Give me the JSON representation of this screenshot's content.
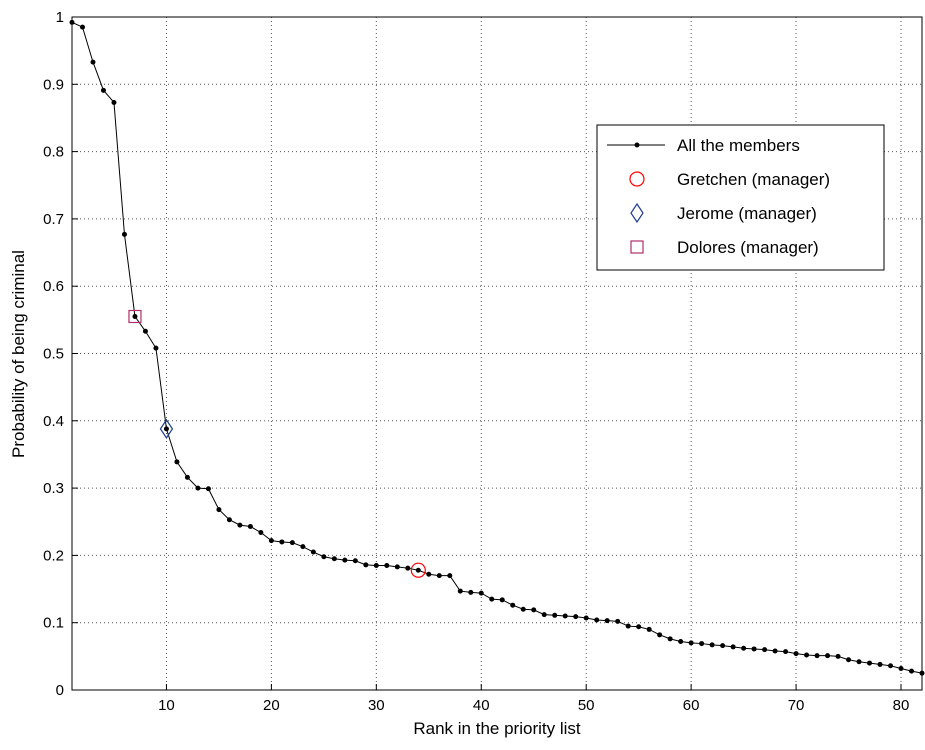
{
  "chart_data": {
    "type": "line",
    "xlabel": "Rank in the priority list",
    "ylabel": "Probability of being criminal",
    "xlim": [
      1,
      82
    ],
    "ylim": [
      0,
      1
    ],
    "xticks": [
      10,
      20,
      30,
      40,
      50,
      60,
      70,
      80
    ],
    "yticks": [
      0,
      0.1,
      0.2,
      0.3,
      0.4,
      0.5,
      0.6,
      0.7,
      0.8,
      0.9,
      1
    ],
    "grid": true,
    "legend": "east",
    "series": [
      {
        "name": "All the members",
        "color": "#000000",
        "marker": "dot",
        "x": [
          1,
          2,
          3,
          4,
          5,
          6,
          7,
          8,
          9,
          10,
          11,
          12,
          13,
          14,
          15,
          16,
          17,
          18,
          19,
          20,
          21,
          22,
          23,
          24,
          25,
          26,
          27,
          28,
          29,
          30,
          31,
          32,
          33,
          34,
          35,
          36,
          37,
          38,
          39,
          40,
          41,
          42,
          43,
          44,
          45,
          46,
          47,
          48,
          49,
          50,
          51,
          52,
          53,
          54,
          55,
          56,
          57,
          58,
          59,
          60,
          61,
          62,
          63,
          64,
          65,
          66,
          67,
          68,
          69,
          70,
          71,
          72,
          73,
          74,
          75,
          76,
          77,
          78,
          79,
          80,
          81,
          82
        ],
        "values": [
          0.992,
          0.985,
          0.933,
          0.891,
          0.873,
          0.677,
          0.555,
          0.533,
          0.508,
          0.388,
          0.339,
          0.316,
          0.3,
          0.299,
          0.268,
          0.253,
          0.245,
          0.243,
          0.234,
          0.222,
          0.22,
          0.219,
          0.213,
          0.205,
          0.198,
          0.195,
          0.193,
          0.192,
          0.186,
          0.185,
          0.185,
          0.183,
          0.181,
          0.178,
          0.172,
          0.17,
          0.17,
          0.147,
          0.145,
          0.144,
          0.135,
          0.134,
          0.126,
          0.12,
          0.119,
          0.112,
          0.111,
          0.11,
          0.109,
          0.107,
          0.104,
          0.103,
          0.102,
          0.095,
          0.094,
          0.09,
          0.082,
          0.076,
          0.072,
          0.07,
          0.069,
          0.067,
          0.066,
          0.064,
          0.062,
          0.061,
          0.06,
          0.058,
          0.057,
          0.054,
          0.052,
          0.051,
          0.051,
          0.05,
          0.045,
          0.042,
          0.04,
          0.038,
          0.036,
          0.032,
          0.028,
          0.025
        ]
      },
      {
        "name": "Gretchen (manager)",
        "color": "#ff0000",
        "marker": "circle",
        "x": [
          34
        ],
        "values": [
          0.178
        ]
      },
      {
        "name": "Jerome (manager)",
        "color": "#1f3f8f",
        "marker": "diamond",
        "x": [
          10
        ],
        "values": [
          0.388
        ]
      },
      {
        "name": "Dolores (manager)",
        "color": "#b0306a",
        "marker": "square",
        "x": [
          7
        ],
        "values": [
          0.555
        ]
      }
    ]
  }
}
